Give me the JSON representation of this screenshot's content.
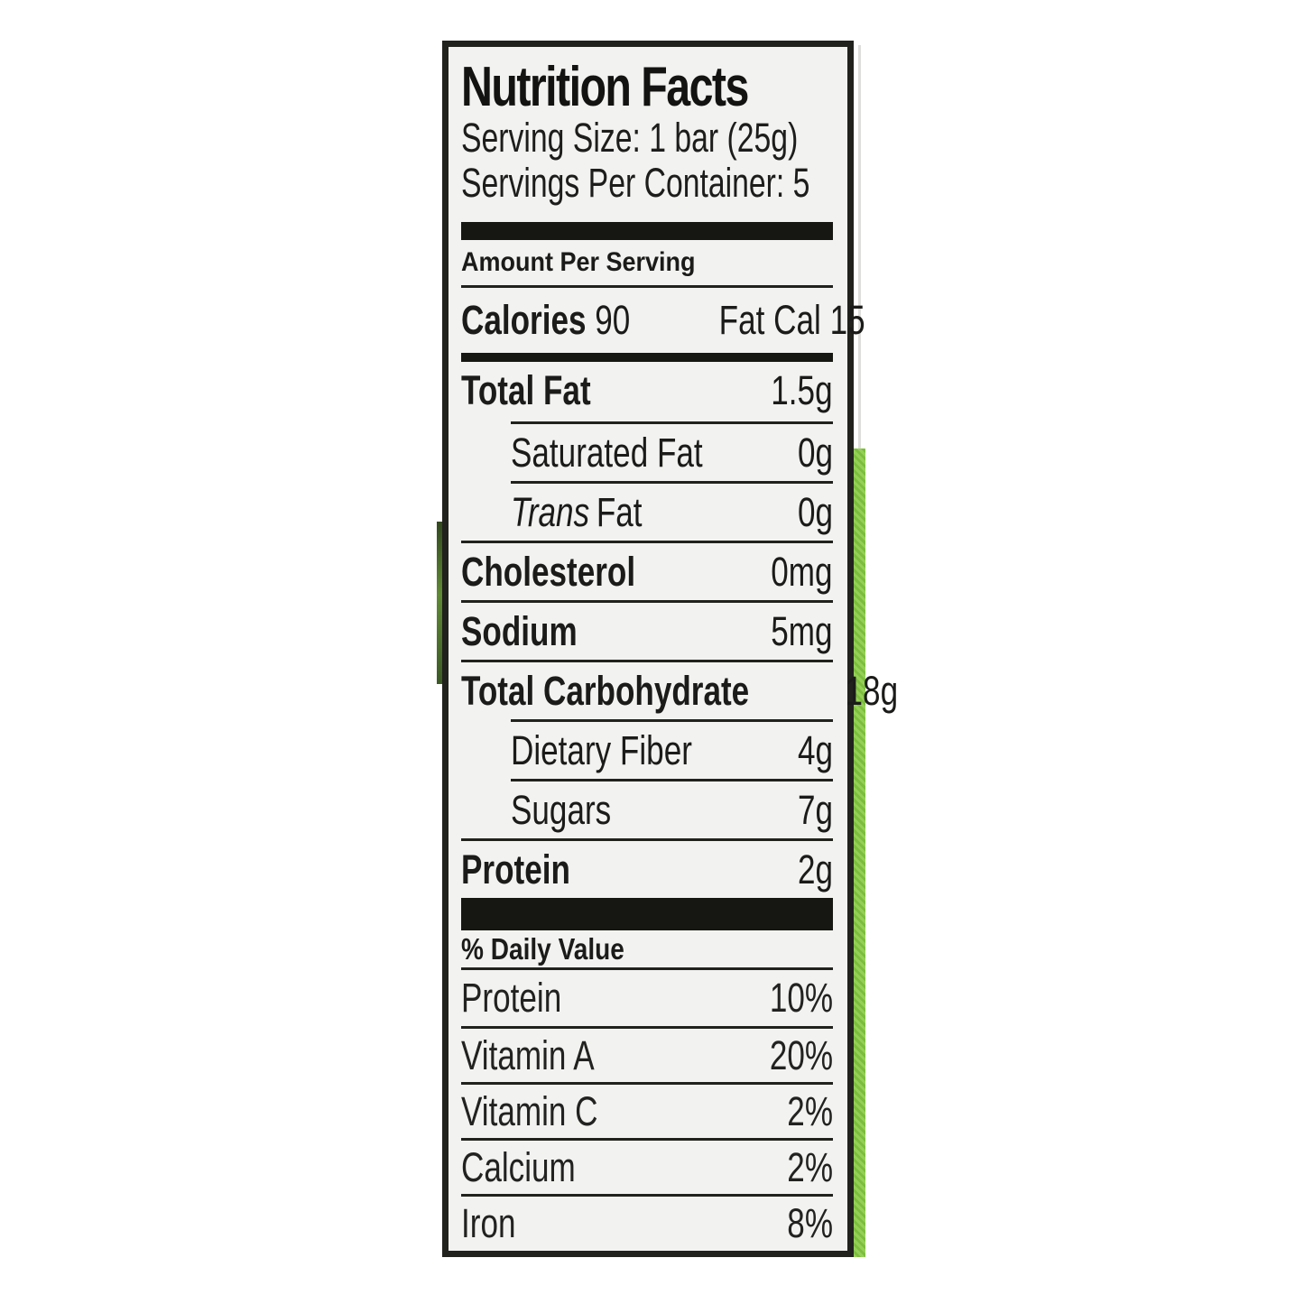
{
  "nutrition_label": {
    "title": "Nutrition Facts",
    "serving_size": "Serving Size: 1 bar (25g)",
    "servings_per_container": "Servings Per Container: 5",
    "amount_per_serving": "Amount Per Serving",
    "calories": {
      "label": "Calories",
      "value": "90",
      "fat_cal_label": "Fat Cal",
      "fat_cal_value": "15"
    },
    "nutrient_rows": [
      {
        "label": "Total Fat",
        "value": "1.5g"
      },
      {
        "label": "Saturated Fat",
        "value": "0g"
      },
      {
        "label_italic": "Trans",
        "label_rest": "Fat",
        "value": "0g"
      },
      {
        "label": "Cholesterol",
        "value": "0mg"
      },
      {
        "label": "Sodium",
        "value": "5mg"
      },
      {
        "label": "Total Carbohydrate",
        "value": "18g"
      },
      {
        "label": "Dietary Fiber",
        "value": "4g"
      },
      {
        "label": "Sugars",
        "value": "7g"
      },
      {
        "label": "Protein",
        "value": "2g"
      }
    ],
    "daily_value_header": "% Daily Value",
    "daily_value_rows": [
      {
        "label": "Protein",
        "value": "10%"
      },
      {
        "label": "Vitamin A",
        "value": "20%"
      },
      {
        "label": "Vitamin C",
        "value": "2%"
      },
      {
        "label": "Calcium",
        "value": "2%"
      },
      {
        "label": "Iron",
        "value": "8%"
      }
    ],
    "colors": {
      "package_accent_green": "#8cc84b",
      "label_background": "#f2f3f0",
      "border_black": "#21211d"
    }
  }
}
